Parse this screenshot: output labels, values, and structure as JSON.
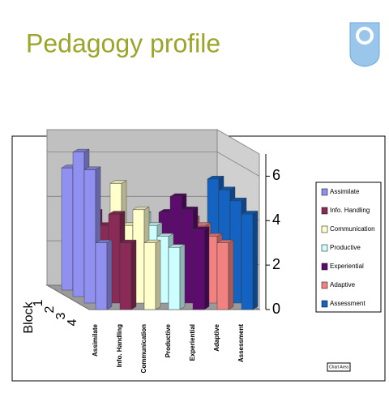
{
  "title": "Pedagogy profile",
  "chart_area_button": "Chart Area",
  "chart_data": {
    "type": "bar3d",
    "depth_label": "Block",
    "categories": [
      "Assimilate",
      "Info. Handling",
      "Communication",
      "Productive",
      "Experiential",
      "Adaptive",
      "Assessment"
    ],
    "colors": [
      "#9090f0",
      "#8a2b57",
      "#ffffcc",
      "#ccffff",
      "#5b0c6c",
      "#f28282",
      "#1463c2"
    ],
    "series": [
      {
        "name": "1",
        "values": [
          5.5,
          3.5,
          4.8,
          3.4,
          3.5,
          3.2,
          5.0
        ]
      },
      {
        "name": "2",
        "values": [
          6.5,
          3.2,
          3.2,
          3.2,
          4.5,
          3.2,
          4.8
        ]
      },
      {
        "name": "3",
        "values": [
          6.0,
          4.0,
          4.2,
          3.0,
          4.2,
          3.0,
          4.6
        ]
      },
      {
        "name": "4",
        "values": [
          3.0,
          3.0,
          3.0,
          2.8,
          3.6,
          3.0,
          4.3
        ]
      }
    ],
    "ylim": [
      0,
      7
    ],
    "yticks": [
      0,
      2,
      4,
      6
    ],
    "grid": true,
    "legend": "right"
  }
}
